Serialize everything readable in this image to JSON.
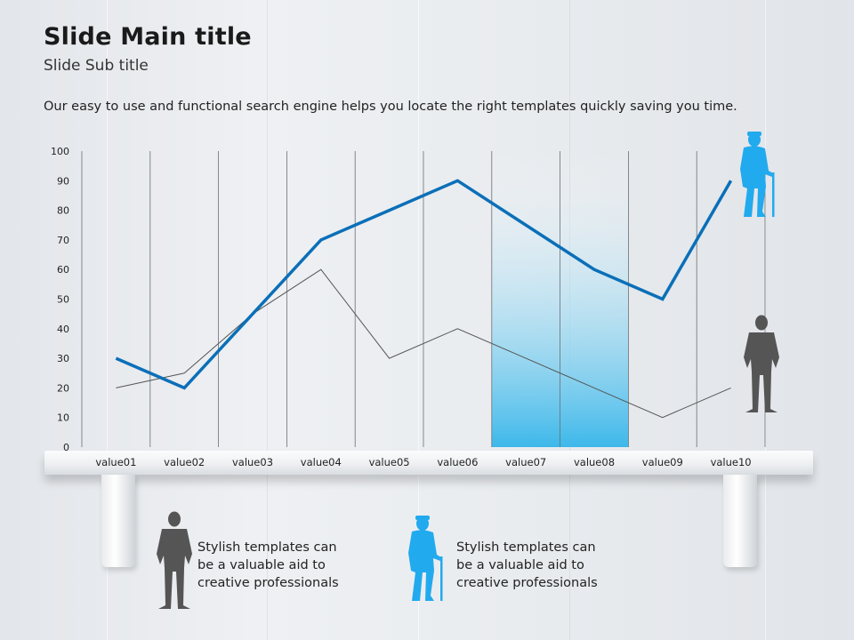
{
  "slide": {
    "title": "Slide Main title",
    "subtitle": "Slide Sub title",
    "description": "Our easy to use and functional search engine helps you locate the right templates quickly saving you time."
  },
  "captions": [
    {
      "text": "Stylish templates can\nbe a valuable aid to\ncreative professionals",
      "icon": "businessman-icon",
      "color": "#555555"
    },
    {
      "text": "Stylish templates can\nbe a valuable aid to\ncreative professionals",
      "icon": "elderly-man-icon",
      "color": "#22aaee"
    }
  ],
  "colors": {
    "series_blue": "#0b6fb8",
    "series_gray": "#555555",
    "highlight": "#3db8ea"
  },
  "chart_data": {
    "type": "line",
    "categories": [
      "value01",
      "value02",
      "value03",
      "value04",
      "value05",
      "value06",
      "value07",
      "value08",
      "value09",
      "value10"
    ],
    "y_ticks": [
      0,
      10,
      20,
      30,
      40,
      50,
      60,
      70,
      80,
      90,
      100
    ],
    "ylim": [
      0,
      100
    ],
    "grid": "vertical",
    "highlight_categories": [
      "value07",
      "value08"
    ],
    "series": [
      {
        "values": [
          30,
          20,
          45,
          70,
          80,
          90,
          75,
          60,
          50,
          90
        ],
        "color": "#0b6fb8",
        "icon": "elderly-man-icon"
      },
      {
        "values": [
          20,
          25,
          45,
          60,
          30,
          40,
          30,
          20,
          10,
          20
        ],
        "color": "#555555",
        "icon": "businessman-icon"
      }
    ]
  }
}
